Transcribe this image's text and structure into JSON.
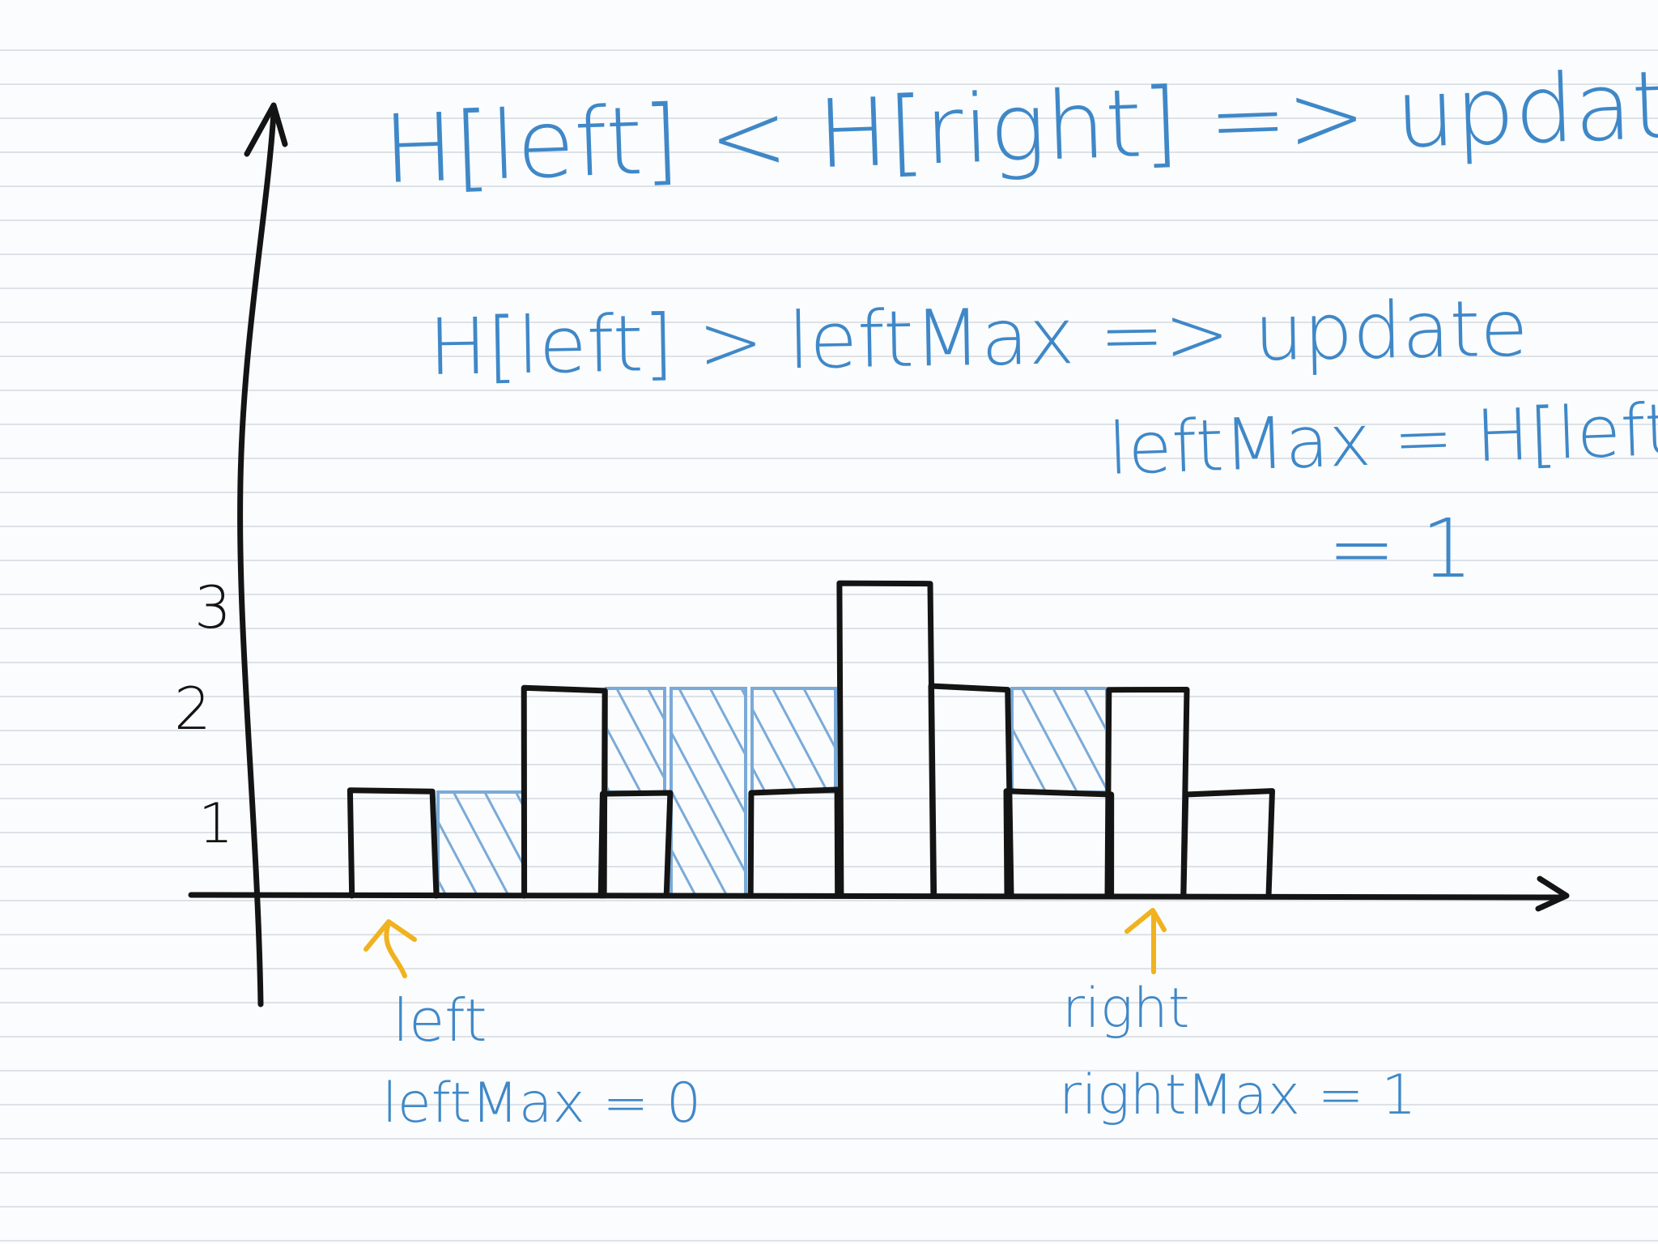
{
  "colors": {
    "paper": "#fbfcfd",
    "rule_lines": "#dde2e8",
    "ink_black": "#141414",
    "ink_blue": "#3f88c8",
    "water_blue": "#7aaad8",
    "ink_yellow": "#f0b21f"
  },
  "notes": {
    "line1": "H[left] < H[right] => update LEFT",
    "line2": "H[left] > leftMax  => update",
    "line3": "leftMax = H[left]",
    "line4": "= 1"
  },
  "axis": {
    "y_ticks": [
      "1",
      "2",
      "3"
    ]
  },
  "heights": [
    0,
    1,
    0,
    2,
    1,
    0,
    1,
    3,
    2,
    1,
    2,
    1
  ],
  "water_fill_level": [
    0,
    0,
    1,
    0,
    1,
    2,
    1,
    0,
    0,
    1,
    0,
    0
  ],
  "pointers": {
    "left_label": "left",
    "left_max": "leftMax = 0",
    "right_label": "right",
    "right_max": "rightMax = 1"
  }
}
